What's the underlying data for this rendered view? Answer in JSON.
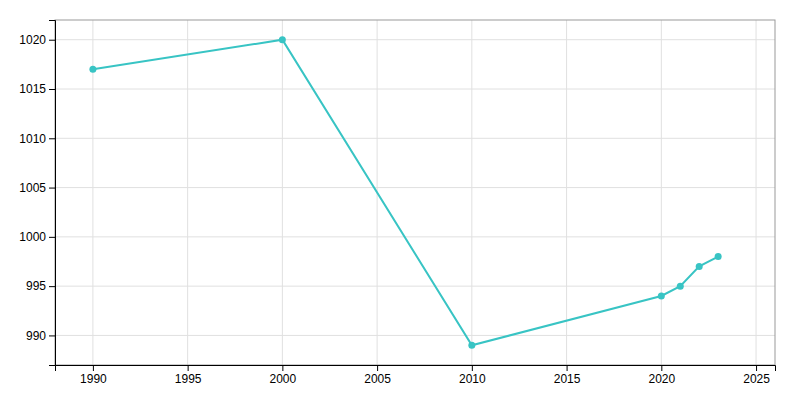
{
  "chart_data": {
    "type": "line",
    "x": [
      1990,
      2000,
      2010,
      2020,
      2021,
      2022,
      2023
    ],
    "values": [
      1017,
      1020,
      989,
      994,
      995,
      997,
      998
    ],
    "color": "#38c4c4",
    "marker": "circle",
    "xlim": [
      1988,
      2026
    ],
    "ylim": [
      987,
      1022
    ],
    "xticks": [
      1990,
      1995,
      2000,
      2005,
      2010,
      2015,
      2020,
      2025
    ],
    "yticks": [
      990,
      995,
      1000,
      1005,
      1010,
      1015,
      1020
    ],
    "grid": true
  }
}
